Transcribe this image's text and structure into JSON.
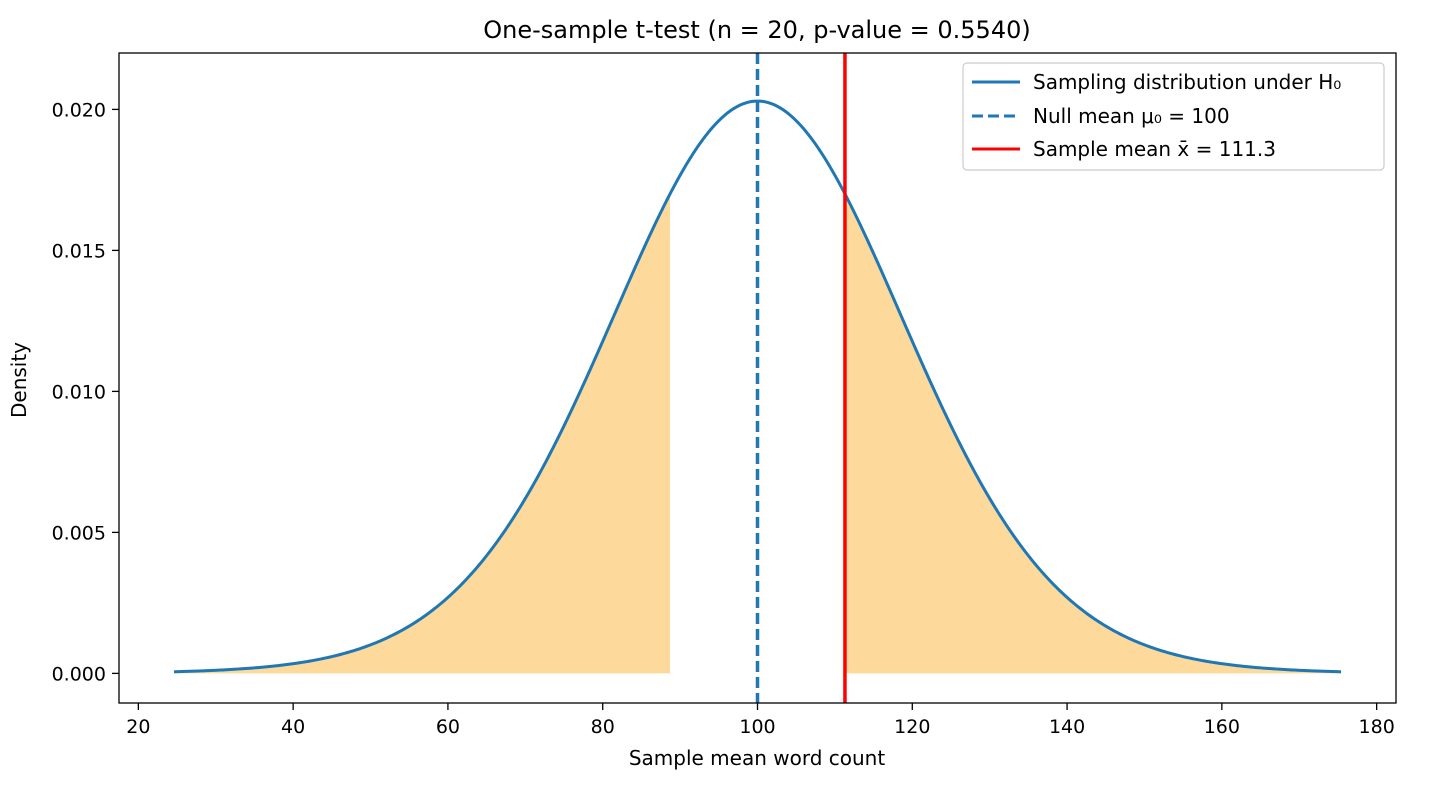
{
  "chart_data": {
    "type": "area",
    "title": "One-sample t-test (n = 20, p-value = 0.5540)",
    "xlabel": "Sample mean word count",
    "ylabel": "Density",
    "xlim": [
      17.5,
      182.5
    ],
    "ylim": [
      -0.00105,
      0.022
    ],
    "x_ticks": [
      20,
      40,
      60,
      80,
      100,
      120,
      140,
      160,
      180
    ],
    "x_tick_labels": [
      "20",
      "40",
      "60",
      "80",
      "100",
      "120",
      "140",
      "160",
      "180"
    ],
    "y_ticks": [
      0.0,
      0.005,
      0.01,
      0.015,
      0.02
    ],
    "y_tick_labels": [
      "0.000",
      "0.005",
      "0.010",
      "0.015",
      "0.020"
    ],
    "grid": false,
    "legend_position": "top-right",
    "distribution": {
      "name": "Sampling distribution under H₀",
      "kind": "t",
      "center": 100,
      "scale": 19.4,
      "df": 19,
      "x_range": [
        24.6,
        175.4
      ],
      "color": "#1f77b4"
    },
    "shaded_regions": [
      {
        "x_from": 24.6,
        "x_to": 88.7,
        "color": "#fdd99b"
      },
      {
        "x_from": 111.3,
        "x_to": 175.4,
        "color": "#fdd99b"
      }
    ],
    "reference_lines": [
      {
        "name": "Null mean μ₀ = 100",
        "x": 100,
        "style": "dashed",
        "color": "#1f77b4"
      },
      {
        "name": "Sample mean x̄ = 111.3",
        "x": 111.3,
        "style": "solid",
        "color": "#ff0000"
      }
    ],
    "legend": [
      {
        "label": "Sampling distribution under H₀",
        "style": "solid",
        "color": "#1f77b4"
      },
      {
        "label": "Null mean μ₀ = 100",
        "style": "dashed",
        "color": "#1f77b4"
      },
      {
        "label": "Sample mean x̄ = 111.3",
        "style": "solid",
        "color": "#ff0000"
      }
    ]
  }
}
